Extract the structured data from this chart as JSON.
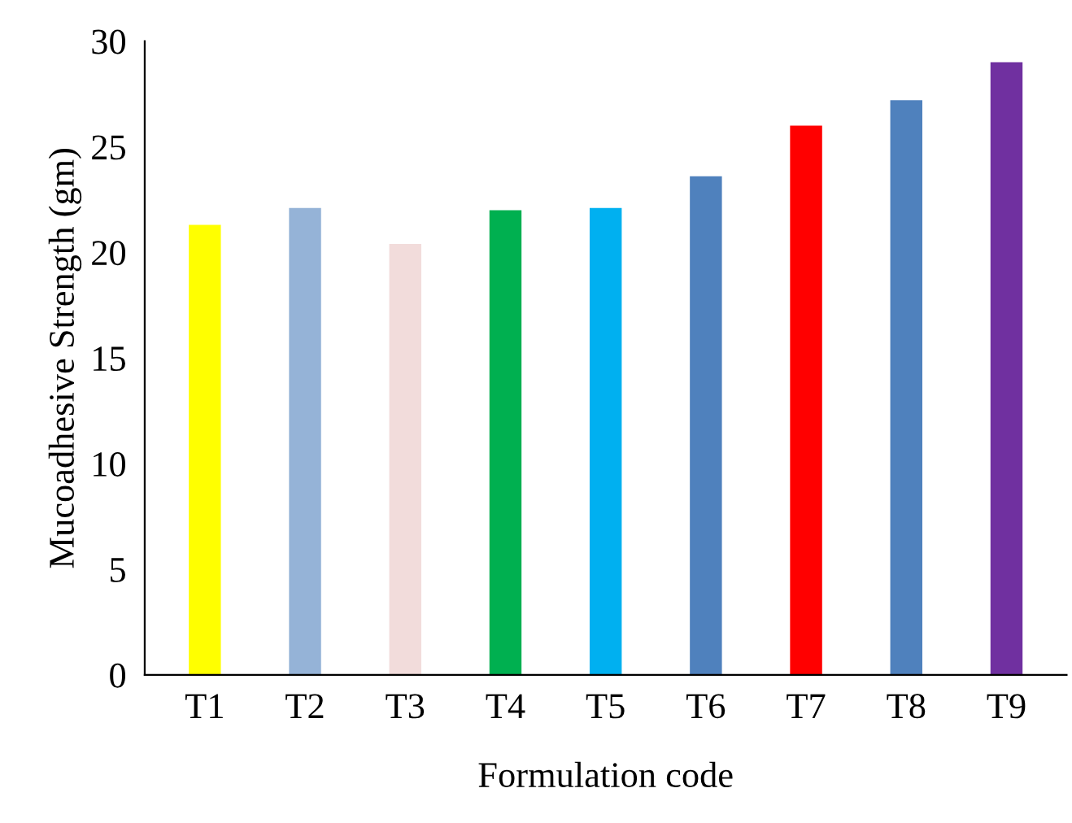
{
  "chart_data": {
    "type": "bar",
    "xlabel": "Formulation code",
    "ylabel": "Mucoadhesive Strength (gm)",
    "categories": [
      "T1",
      "T2",
      "T3",
      "T4",
      "T5",
      "T6",
      "T7",
      "T8",
      "T9"
    ],
    "values": [
      21.3,
      22.1,
      20.4,
      22.0,
      22.1,
      23.6,
      26.0,
      27.2,
      29.0
    ],
    "colors": [
      "#ffff00",
      "#95b3d7",
      "#f2dcdb",
      "#00b050",
      "#00b0f0",
      "#4f81bd",
      "#ff0000",
      "#4f81bd",
      "#7030a0"
    ],
    "ylim": [
      0,
      30
    ],
    "yticks": [
      0,
      5,
      10,
      15,
      20,
      25,
      30
    ],
    "grid": false,
    "legend": false
  }
}
